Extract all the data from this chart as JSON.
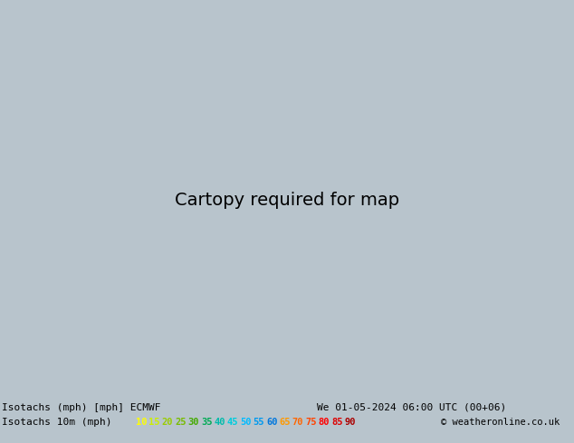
{
  "title_line1": "Isotachs (mph) [mph] ECMWF",
  "title_line2": "Isotachs 10m (mph)",
  "date_str": "We 01-05-2024 06:00 UTC (00+06)",
  "copyright": "© weatheronline.co.uk",
  "bg_ocean": "#e0e4ea",
  "bg_land": "#c8ddb0",
  "coast_color": "#333333",
  "coast_lw": 0.7,
  "extent": [
    -22,
    20,
    44,
    65
  ],
  "legend_values": [
    10,
    15,
    20,
    25,
    30,
    35,
    40,
    45,
    50,
    55,
    60,
    65,
    70,
    75,
    80,
    85,
    90
  ],
  "legend_colors": [
    "#ffff00",
    "#ccee00",
    "#99cc00",
    "#77bb00",
    "#44aa00",
    "#00aa55",
    "#00bbaa",
    "#00ccdd",
    "#00bbff",
    "#0099ee",
    "#0077dd",
    "#ff9900",
    "#ff6600",
    "#ff4400",
    "#ff0000",
    "#dd0000",
    "#aa0000"
  ],
  "contour_color_10": "#ffcc00",
  "contour_color_15": "#ffcc00",
  "contour_color_20": "#ffcc00",
  "contour_color_25": "#88cc00",
  "contour_color_30": "#44aa44",
  "contour_color_cyan": "#00bbcc",
  "contour_color_black": "#000000",
  "bottom_bg": "#b8c4cc"
}
